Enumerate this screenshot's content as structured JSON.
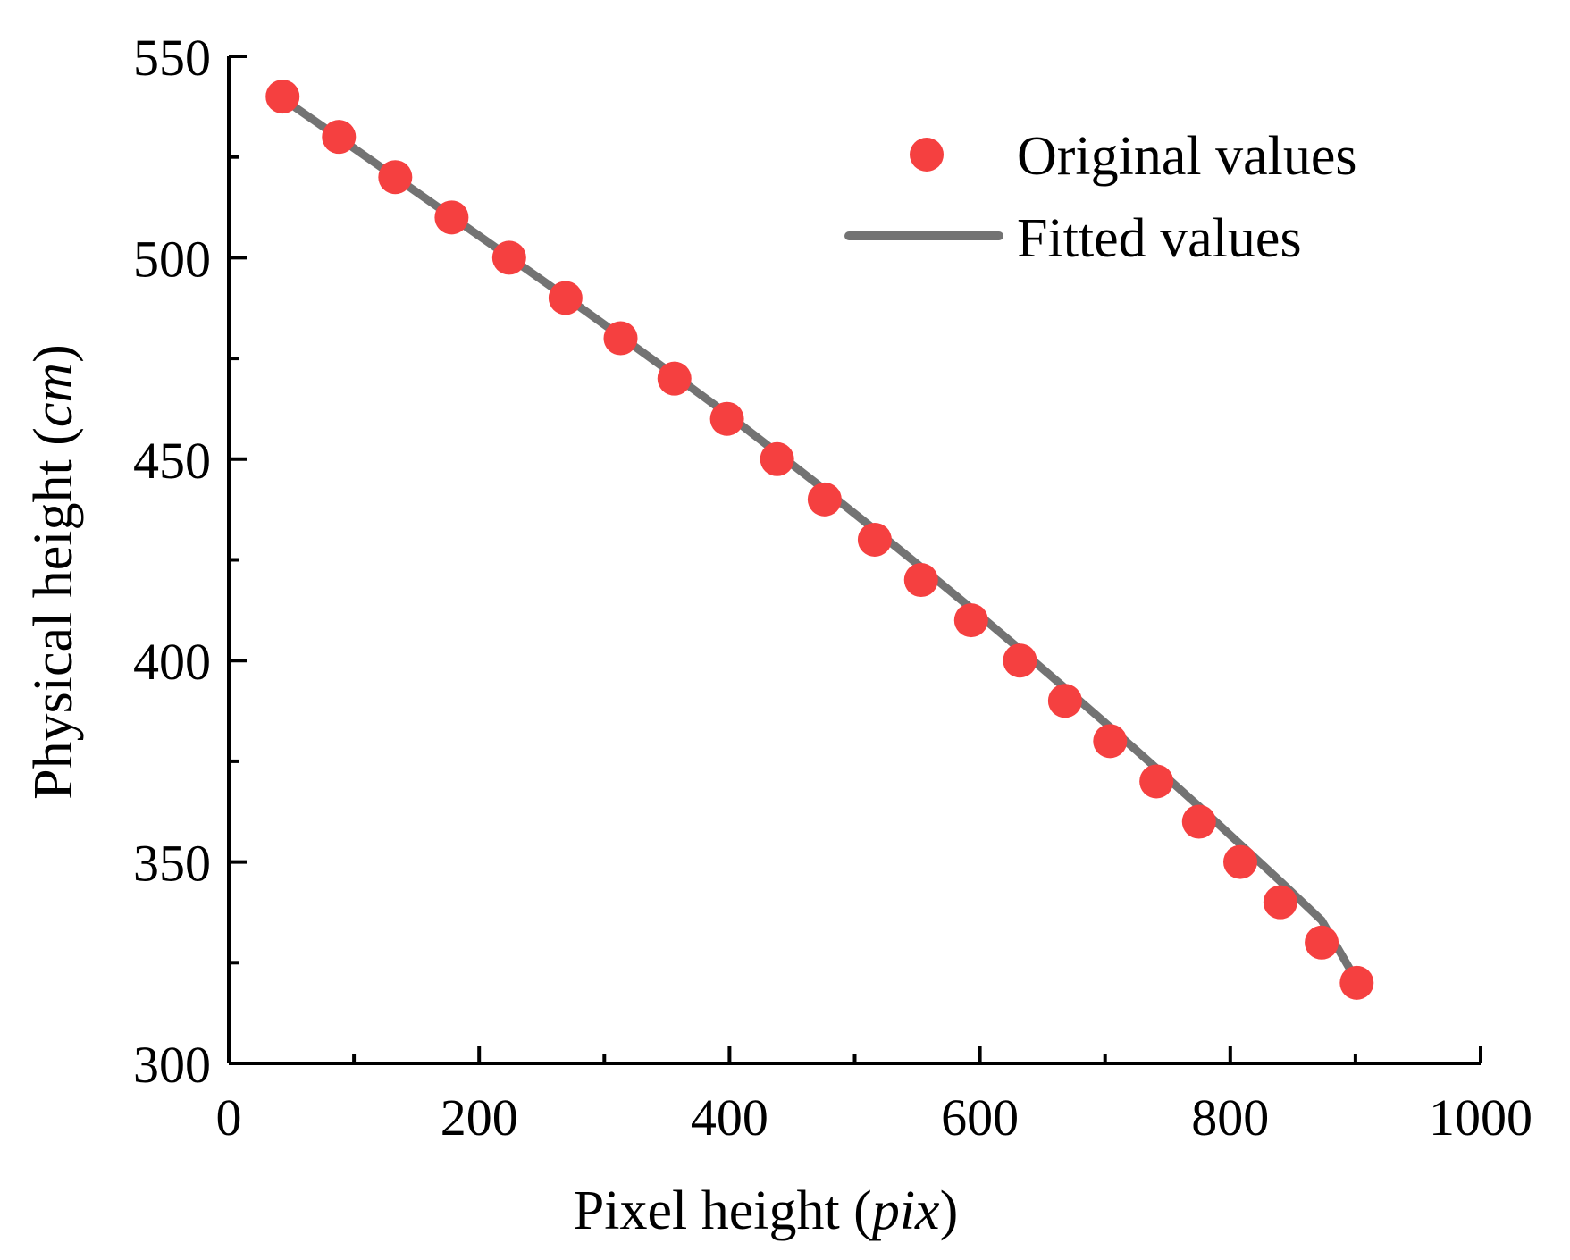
{
  "chart_data": {
    "type": "scatter",
    "title": "",
    "xlabel": "Pixel height (pix)",
    "xlabel_main": "Pixel height (",
    "xlabel_unit": "pix",
    "xlabel_close": ")",
    "ylabel": "Physical height (cm)",
    "ylabel_main": "Physical height (",
    "ylabel_unit": "cm",
    "ylabel_close": ")",
    "xlim": [
      0,
      1000
    ],
    "ylim": [
      300,
      550
    ],
    "x_ticks": [
      0,
      200,
      400,
      600,
      800,
      1000
    ],
    "x_tick_labels": [
      "0",
      "200",
      "400",
      "600",
      "800",
      "1000"
    ],
    "x_minor_ticks": [
      100,
      300,
      500,
      700,
      900
    ],
    "y_ticks": [
      300,
      350,
      400,
      450,
      500,
      550
    ],
    "y_tick_labels": [
      "300",
      "350",
      "400",
      "450",
      "500",
      "550"
    ],
    "y_minor_ticks": [
      325,
      375,
      425,
      475,
      525
    ],
    "grid": false,
    "legend_position": "top-right",
    "colors": {
      "points": "#f54040",
      "line": "#737373",
      "axis": "#000000"
    },
    "series": [
      {
        "name": "Original values",
        "kind": "scatter",
        "x": [
          43,
          88,
          133,
          178,
          224,
          269,
          313,
          356,
          398,
          438,
          476,
          516,
          553,
          593,
          632,
          668,
          704,
          741,
          775,
          808,
          840,
          873,
          901
        ],
        "y": [
          540,
          530,
          520,
          510,
          500,
          490,
          480,
          470,
          460,
          450,
          440,
          430,
          420,
          410,
          400,
          390,
          380,
          370,
          360,
          350,
          340,
          330,
          320
        ]
      },
      {
        "name": "Fitted values",
        "kind": "line",
        "x": [
          43,
          88,
          133,
          178,
          224,
          269,
          313,
          356,
          398,
          438,
          476,
          516,
          553,
          593,
          632,
          668,
          704,
          741,
          775,
          808,
          840,
          873,
          901
        ],
        "y": [
          539.5,
          529.8,
          520.0,
          510.2,
          500.2,
          490.3,
          480.5,
          470.8,
          461.2,
          451.6,
          442.4,
          432.5,
          423.2,
          413.0,
          402.8,
          393.2,
          383.5,
          373.3,
          363.8,
          354.4,
          345.2,
          335.5,
          320.5
        ]
      }
    ]
  }
}
